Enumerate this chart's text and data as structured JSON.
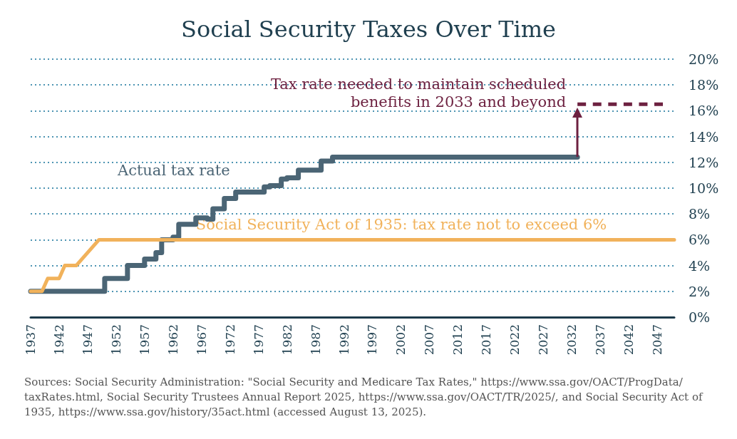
{
  "chart_data": {
    "type": "line",
    "title": "Social Security Taxes Over Time",
    "xlim": [
      1937,
      2050
    ],
    "xticks": [
      1937,
      1942,
      1947,
      1952,
      1957,
      1962,
      1967,
      1972,
      1977,
      1982,
      1987,
      1992,
      1997,
      2002,
      2007,
      2012,
      2017,
      2022,
      2027,
      2032,
      2037,
      2042,
      2047
    ],
    "ylim": [
      0,
      20
    ],
    "yticks": [
      {
        "value": 0,
        "label": "0%"
      },
      {
        "value": 2,
        "label": "2%"
      },
      {
        "value": 4,
        "label": "4%"
      },
      {
        "value": 6,
        "label": "6%"
      },
      {
        "value": 8,
        "label": "8%"
      },
      {
        "value": 10,
        "label": "10%"
      },
      {
        "value": 12,
        "label": "12%"
      },
      {
        "value": 14,
        "label": "14%"
      },
      {
        "value": 16,
        "label": "16%"
      },
      {
        "value": 18,
        "label": "18%"
      },
      {
        "value": 20,
        "label": "20%"
      }
    ],
    "grid": "y",
    "legend": false,
    "series": [
      {
        "name": "Actual tax rate",
        "type": "step",
        "color": "#4b6575",
        "x": [
          1937,
          1950,
          1954,
          1957,
          1959,
          1960,
          1962,
          1963,
          1966,
          1968,
          1969,
          1971,
          1973,
          1978,
          1979,
          1981,
          1982,
          1984,
          1988,
          1990,
          2033
        ],
        "values": [
          2,
          3,
          4,
          4.5,
          5,
          6,
          6.2,
          7.2,
          7.7,
          7.6,
          8.4,
          9.2,
          9.7,
          10.1,
          10.2,
          10.7,
          10.8,
          11.4,
          12.1,
          12.4,
          12.4
        ]
      },
      {
        "name": "Social Security Act of 1935: tax rate not to exceed 6%",
        "color": "#f1b25b",
        "x": [
          1937,
          1939,
          1940,
          1942,
          1943,
          1945,
          1949,
          2050
        ],
        "values": [
          2,
          2,
          3,
          3,
          4,
          4,
          6,
          6
        ]
      },
      {
        "name": "Tax rate needed to maintain scheduled benefits in 2033 and beyond",
        "line_style": "dashed",
        "color": "#6d2140",
        "x": [
          2033,
          2048
        ],
        "values": [
          16.5,
          16.5
        ]
      }
    ],
    "annotations": [
      "Sources: Social Security Administration: \"Social Security and Medicare Tax Rates,\" https://www.ssa.gov/OACT/ProgData/taxRates.html, Social Security Trustees Annual Report 2025, https://www.ssa.gov/OACT/TR/2025/, and Social Security Act of 1935, https://www.ssa.gov/history/35act.html (accessed August 13, 2025)."
    ]
  }
}
